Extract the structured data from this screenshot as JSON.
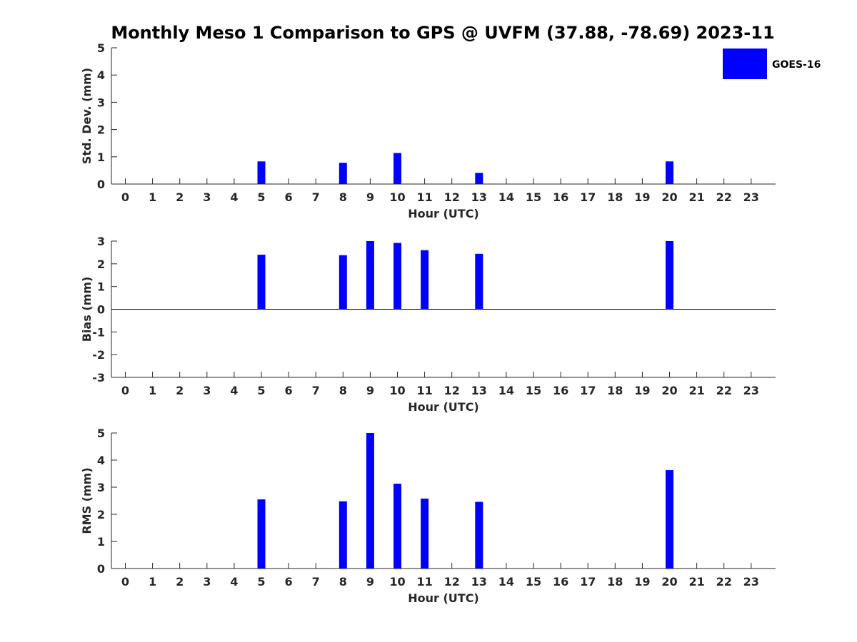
{
  "chart_data": {
    "type": "bar",
    "title": "Monthly Meso 1 Comparison to GPS @ UVFM (37.88, -78.69) 2023-11",
    "legend": {
      "placement": "top-right",
      "entries": [
        "GOES-16"
      ]
    },
    "colors": {
      "series": "#0000ff",
      "axis": "#262626"
    },
    "categories": [
      "0",
      "1",
      "2",
      "3",
      "4",
      "5",
      "6",
      "7",
      "8",
      "9",
      "10",
      "11",
      "12",
      "13",
      "14",
      "15",
      "16",
      "17",
      "18",
      "19",
      "20",
      "21",
      "22",
      "23"
    ],
    "panels": [
      {
        "id": "stddev",
        "ylabel": "Std. Dev. (mm)",
        "xlabel": "Hour (UTC)",
        "ylim": [
          0,
          5
        ],
        "yticks": [
          "0",
          "1",
          "2",
          "3",
          "4",
          "5"
        ],
        "series": [
          {
            "name": "GOES-16",
            "values": [
              null,
              null,
              null,
              null,
              null,
              0.83,
              null,
              null,
              0.78,
              null,
              1.14,
              null,
              null,
              0.41,
              null,
              null,
              null,
              null,
              null,
              null,
              0.83,
              null,
              null,
              null
            ]
          }
        ]
      },
      {
        "id": "bias",
        "ylabel": "Bias (mm)",
        "xlabel": "Hour (UTC)",
        "ylim": [
          -3,
          3
        ],
        "yticks": [
          "-3",
          "-2",
          "-1",
          "0",
          "1",
          "2",
          "3"
        ],
        "zero_line": true,
        "series": [
          {
            "name": "GOES-16",
            "values": [
              null,
              null,
              null,
              null,
              null,
              2.4,
              null,
              null,
              2.38,
              3.0,
              2.92,
              2.6,
              null,
              2.44,
              null,
              null,
              null,
              null,
              null,
              null,
              3.0,
              null,
              null,
              null
            ]
          }
        ]
      },
      {
        "id": "rms",
        "ylabel": "RMS (mm)",
        "xlabel": "Hour (UTC)",
        "ylim": [
          0,
          5
        ],
        "yticks": [
          "0",
          "1",
          "2",
          "3",
          "4",
          "5"
        ],
        "series": [
          {
            "name": "GOES-16",
            "values": [
              null,
              null,
              null,
              null,
              null,
              2.55,
              null,
              null,
              2.48,
              5.0,
              3.13,
              2.58,
              null,
              2.46,
              null,
              null,
              null,
              null,
              null,
              null,
              3.63,
              null,
              null,
              null
            ]
          }
        ]
      }
    ]
  }
}
